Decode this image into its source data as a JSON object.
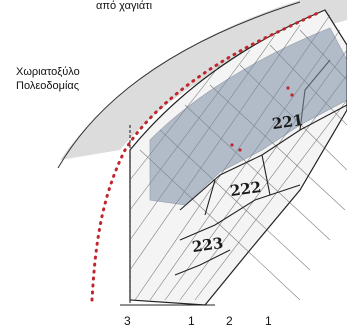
{
  "top_caption": "από χαγιάτι",
  "side_label": {
    "line1": "Χωριατοξύλο",
    "line2": "Πολεοδομίας"
  },
  "region_labels": [
    "221",
    "222",
    "223"
  ],
  "bottom_markers": [
    "3",
    "1",
    "2",
    "1"
  ],
  "colors": {
    "dotted_boundary": "#c0262b",
    "overlay": "#7d8fa6",
    "shadow": "#d8d8d8",
    "ink": "#1a1a1a"
  }
}
